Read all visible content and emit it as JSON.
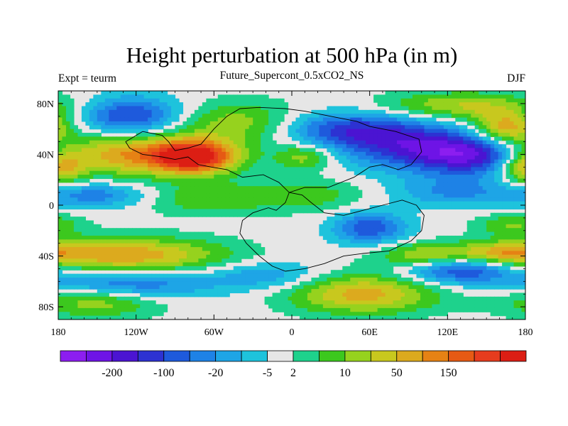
{
  "chart_data": {
    "type": "heatmap",
    "title": "Height perturbation at 500 hPa (in m)",
    "subtitle": "Future_Supercont_0.5xCO2_NS",
    "left_string": "Expt = teurm",
    "right_string": "DJF",
    "projection": "cylindrical-equidistant",
    "xlim": [
      -180,
      180
    ],
    "ylim": [
      -90,
      90
    ],
    "x_ticks": [
      -180,
      -120,
      -60,
      0,
      60,
      120,
      180
    ],
    "x_tick_labels": [
      "180",
      "120W",
      "60W",
      "0",
      "60E",
      "120E",
      "180"
    ],
    "y_ticks": [
      80,
      40,
      0,
      -40,
      -80
    ],
    "y_tick_labels": [
      "80N",
      "40N",
      "0",
      "40S",
      "80S"
    ],
    "colorbar": {
      "orientation": "horizontal",
      "colors": [
        "#8c1ef0",
        "#6e14e6",
        "#4b14d2",
        "#2d32d2",
        "#1e5adc",
        "#1e82e6",
        "#1ea5e6",
        "#1ec3dc",
        "#e6e6e6",
        "#1ed28c",
        "#3cc81e",
        "#96d21e",
        "#c8c81e",
        "#dcaa1e",
        "#e68214",
        "#e65a14",
        "#e63c1e",
        "#dc1e14"
      ],
      "labels": [
        "-200",
        "-100",
        "-20",
        "-5",
        "2",
        "10",
        "50",
        "150"
      ],
      "label_after_box": [
        1,
        3,
        5,
        7,
        8,
        10,
        12,
        14
      ]
    },
    "field_features": [
      {
        "lon": -180,
        "lat": 30,
        "value": 8,
        "sx": 14,
        "sy": 10
      },
      {
        "lon": -130,
        "lat": 40,
        "value": 9,
        "sx": 50,
        "sy": 12
      },
      {
        "lon": -75,
        "lat": 38,
        "value": 13,
        "sx": 22,
        "sy": 9
      },
      {
        "lon": -125,
        "lat": 70,
        "value": -8,
        "sx": 28,
        "sy": 11
      },
      {
        "lon": -40,
        "lat": 65,
        "value": 5,
        "sx": 35,
        "sy": 12
      },
      {
        "lon": 10,
        "lat": 38,
        "value": 5,
        "sx": 16,
        "sy": 7
      },
      {
        "lon": 35,
        "lat": 60,
        "value": -6,
        "sx": 35,
        "sy": 10
      },
      {
        "lon": 80,
        "lat": 50,
        "value": -7,
        "sx": 35,
        "sy": 14
      },
      {
        "lon": 140,
        "lat": 40,
        "value": -12,
        "sx": 35,
        "sy": 12
      },
      {
        "lon": 130,
        "lat": 78,
        "value": 6,
        "sx": 45,
        "sy": 8
      },
      {
        "lon": 165,
        "lat": 60,
        "value": 9,
        "sx": 18,
        "sy": 9
      },
      {
        "lon": -150,
        "lat": 8,
        "value": -5,
        "sx": 30,
        "sy": 7
      },
      {
        "lon": -70,
        "lat": 5,
        "value": 3.5,
        "sx": 35,
        "sy": 9
      },
      {
        "lon": 10,
        "lat": 8,
        "value": 3.5,
        "sx": 35,
        "sy": 9
      },
      {
        "lon": 125,
        "lat": 10,
        "value": -4,
        "sx": 35,
        "sy": 8
      },
      {
        "lon": 60,
        "lat": -18,
        "value": -7,
        "sx": 20,
        "sy": 9
      },
      {
        "lon": 170,
        "lat": -15,
        "value": 4,
        "sx": 20,
        "sy": 6
      },
      {
        "lon": -130,
        "lat": -40,
        "value": 9,
        "sx": 55,
        "sy": 10
      },
      {
        "lon": 110,
        "lat": -40,
        "value": 7,
        "sx": 30,
        "sy": 7
      },
      {
        "lon": 165,
        "lat": -38,
        "value": 5,
        "sx": 20,
        "sy": 6
      },
      {
        "lon": -130,
        "lat": -62,
        "value": -7,
        "sx": 45,
        "sy": 9
      },
      {
        "lon": 130,
        "lat": -50,
        "value": -9,
        "sx": 30,
        "sy": 8
      },
      {
        "lon": -150,
        "lat": -75,
        "value": 6,
        "sx": 35,
        "sy": 9
      },
      {
        "lon": 55,
        "lat": -70,
        "value": 8,
        "sx": 40,
        "sy": 11
      },
      {
        "lon": -20,
        "lat": -55,
        "value": -4,
        "sx": 30,
        "sy": 8
      }
    ],
    "supercontinent_outline": [
      [
        -115,
        58
      ],
      [
        -100,
        55
      ],
      [
        -95,
        50
      ],
      [
        -90,
        43
      ],
      [
        -80,
        45
      ],
      [
        -70,
        48
      ],
      [
        -60,
        60
      ],
      [
        -50,
        70
      ],
      [
        -40,
        76
      ],
      [
        -25,
        77
      ],
      [
        -5,
        76
      ],
      [
        10,
        74
      ],
      [
        30,
        70
      ],
      [
        50,
        66
      ],
      [
        60,
        62
      ],
      [
        80,
        58
      ],
      [
        98,
        52
      ],
      [
        100,
        42
      ],
      [
        92,
        32
      ],
      [
        82,
        28
      ],
      [
        70,
        32
      ],
      [
        60,
        30
      ],
      [
        48,
        22
      ],
      [
        28,
        14
      ],
      [
        10,
        14
      ],
      [
        -2,
        10
      ],
      [
        -5,
        2
      ],
      [
        -12,
        -4
      ],
      [
        -18,
        -2
      ],
      [
        -30,
        -6
      ],
      [
        -38,
        -12
      ],
      [
        -40,
        -22
      ],
      [
        -35,
        -30
      ],
      [
        -25,
        -40
      ],
      [
        -15,
        -48
      ],
      [
        -5,
        -52
      ],
      [
        10,
        -50
      ],
      [
        25,
        -46
      ],
      [
        40,
        -40
      ],
      [
        55,
        -38
      ],
      [
        75,
        -36
      ],
      [
        92,
        -28
      ],
      [
        100,
        -20
      ],
      [
        102,
        -8
      ],
      [
        96,
        0
      ],
      [
        85,
        4
      ],
      [
        70,
        0
      ],
      [
        55,
        -4
      ],
      [
        40,
        -8
      ],
      [
        25,
        -6
      ],
      [
        15,
        2
      ],
      [
        8,
        8
      ],
      [
        -2,
        10
      ],
      [
        -10,
        18
      ],
      [
        -22,
        24
      ],
      [
        -38,
        22
      ],
      [
        -50,
        28
      ],
      [
        -62,
        30
      ],
      [
        -72,
        32
      ],
      [
        -80,
        38
      ],
      [
        -90,
        36
      ],
      [
        -100,
        38
      ],
      [
        -115,
        40
      ],
      [
        -125,
        45
      ],
      [
        -128,
        50
      ],
      [
        -115,
        58
      ]
    ]
  }
}
